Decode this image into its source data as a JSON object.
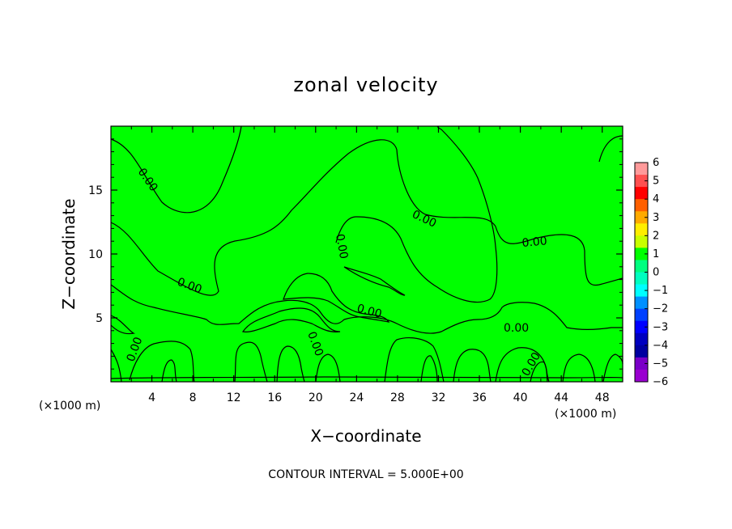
{
  "chart_data": {
    "type": "heatmap",
    "title": "zonal velocity",
    "xlabel": "X−coordinate",
    "ylabel": "Z−coordinate",
    "x_unit_left": "(×1000 m)",
    "x_unit_right": "(×1000 m)",
    "xlim": [
      0,
      50
    ],
    "ylim": [
      0,
      20
    ],
    "x_ticks": [
      4,
      8,
      12,
      16,
      20,
      24,
      28,
      32,
      36,
      40,
      44,
      48
    ],
    "y_ticks": [
      5,
      10,
      15
    ],
    "x_tick_labels": [
      "4",
      "8",
      "12",
      "16",
      "20",
      "24",
      "28",
      "32",
      "36",
      "40",
      "44",
      "48"
    ],
    "y_tick_labels": [
      "5",
      "10",
      "15"
    ],
    "field_color": "#00ff00",
    "contour_value_labels": [
      "0.00",
      "0.00",
      "0.00",
      "0.00",
      "0.00",
      "0.00",
      "0.00",
      "0.00",
      "0.00",
      "0.00"
    ],
    "contour_interval_text": "CONTOUR INTERVAL = 5.000E+00",
    "colorbar": {
      "placement": "right",
      "ticks": [
        6,
        5,
        4,
        3,
        2,
        1,
        0,
        -1,
        -2,
        -3,
        -4,
        -5,
        -6
      ],
      "tick_labels": [
        "6",
        "5",
        "4",
        "3",
        "2",
        "1",
        "0",
        "−1",
        "−2",
        "−3",
        "−4",
        "−5",
        "−6"
      ],
      "colors": [
        "#ff9a9a",
        "#ff5050",
        "#ff0000",
        "#ff6000",
        "#ffaa00",
        "#ffee00",
        "#c8ff00",
        "#00ff00",
        "#00ff80",
        "#00ffc0",
        "#00ffff",
        "#0090ff",
        "#0040ff",
        "#0000ff",
        "#0000c0",
        "#0000a0",
        "#7a00c8",
        "#9a00d0"
      ]
    }
  }
}
